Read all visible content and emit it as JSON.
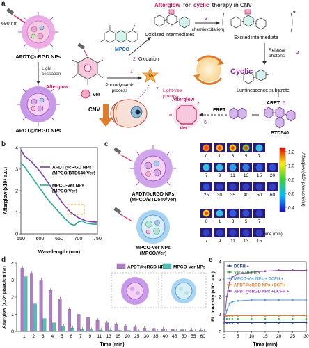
{
  "panel_labels": {
    "a": "a",
    "b": "b",
    "c": "c",
    "d": "d",
    "e": "e"
  },
  "a": {
    "title_afterglow": "Afterglow",
    "title_for": "for",
    "title_cyclic": "cyclic",
    "title_rest": "therapy in CNV",
    "laser": "690 nm",
    "top_np": "APDT@cRGD NPs",
    "light_cessation": "Light\ncessation",
    "afterglow": "Afterglow",
    "bottom_np": "APDT@cRGD NPs",
    "mpco": "MPCO",
    "oxidized": "Oxidized intermediates",
    "step3": "3",
    "chemiexcitation": "chemiexcitation",
    "excited": "Excited intermediate",
    "step2": "2",
    "oxidation": "Oxidation",
    "step1": "1",
    "photodynamic": "Photodynamic\nprocess",
    "ver": "Ver",
    "singlet_oxygen": "¹O₂",
    "step7": "7",
    "light_free": "Light-free\nprocess",
    "cyclic": "Cyclic",
    "release_photons": "Release\nphotons",
    "step4": "4",
    "luminescence": "Luminescence substrate",
    "cnv": "CNV",
    "afterglow2": "Afterglow",
    "ver2": "Ver",
    "step6": "6",
    "fret": "FRET",
    "aret": "ARET",
    "step5": "5",
    "btd": "BTD540"
  },
  "b": {
    "legend": [
      {
        "name": "APDT@cRGD NPs\n(MPCO/BTD540/Ver)",
        "color": "#7b3fa8"
      },
      {
        "name": "MPCO-Ver NPs\n(MPCO/Ver)",
        "color": "#2aa89a"
      }
    ],
    "xlabel": "Wavelength (nm)",
    "ylabel": "Afterglow (x10⁴ a.u.)",
    "xticks": [
      "550",
      "600",
      "650",
      "700",
      "750"
    ],
    "yticks": [
      "0",
      "1",
      "2",
      "3",
      "4"
    ]
  },
  "c": {
    "np1": "APDT@cRGD NPs\n(MPCO/BTD540/Ver)",
    "np2": "MPCO-Ver NPs\n(MPCO/Ver)",
    "top_row1": [
      "0",
      "1",
      "3",
      "5",
      "7"
    ],
    "top_row2": [
      "7",
      "9",
      "11",
      "13",
      "15",
      "20"
    ],
    "top_row3": [
      "25",
      "30",
      "35",
      "40",
      "50",
      "60"
    ],
    "bottom_row1": [
      "0",
      "1",
      "3",
      "5",
      "7"
    ],
    "bottom_row2": [
      "7",
      "9",
      "11",
      "13",
      "15",
      "Time (min)"
    ],
    "colorbar_ticks": [
      "1.2",
      "1.0",
      "0.8",
      "0.6",
      "0.4"
    ],
    "colorbar_label": "Afterglow (x10⁶ p/sec/cm²/sr)"
  },
  "d": {
    "categories": [
      "1",
      "2",
      "3",
      "4",
      "5",
      "6",
      "7",
      "9",
      "11",
      "13",
      "15",
      "20",
      "25",
      "30",
      "35",
      "40",
      "45",
      "50",
      "55",
      "60"
    ],
    "series": [
      {
        "name": "APDT@cRGD NPs",
        "color": "#b07cc6",
        "values": [
          3.7,
          3.4,
          3.0,
          2.4,
          1.9,
          1.3,
          1.0,
          0.8,
          0.65,
          0.5,
          0.4,
          0.3,
          0.25,
          0.2,
          0.17,
          0.15,
          0.12,
          0.1,
          0.08,
          0.07
        ]
      },
      {
        "name": "MPCO-Ver NPs",
        "color": "#4fc2b6",
        "values": [
          3.2,
          1.6,
          0.75,
          0.5,
          0.3,
          0.2,
          0.12,
          0.1,
          0.08,
          0.07,
          0.06,
          0.05,
          0.04,
          0.04,
          0.03,
          0.03,
          0.03,
          0.02,
          0.02,
          0.02
        ]
      }
    ],
    "xlabel": "Time (min)",
    "ylabel": "Afterglow (x10⁶ p/sec/cm²/sr)",
    "yticks": [
      "0",
      "1",
      "2",
      "3",
      "4"
    ]
  },
  "e": {
    "series": [
      {
        "name": "DCFH +",
        "color": "#1f3a93"
      },
      {
        "name": "Ver + DCFH +",
        "color": "#3c8c3c"
      },
      {
        "name": "MPCO-Ver NPs + DCFH +",
        "color": "#5a9bd5"
      },
      {
        "name": "APDT@cRGD NPs +DCFH",
        "color": "#e07b2a"
      },
      {
        "name": "APDT@cRGD NPs +DCFH +",
        "color": "#8e44ad"
      }
    ],
    "xlabel": "Time (min)",
    "ylabel": "FL. intensity (x10⁴ a.u.)",
    "xticks": [
      "0",
      "5",
      "10",
      "15",
      "20",
      "25",
      "30"
    ],
    "yticks": [
      "0",
      "1",
      "2",
      "3",
      "4"
    ]
  },
  "chart_data": [
    {
      "type": "line",
      "panel": "b",
      "xlabel": "Wavelength (nm)",
      "ylabel": "Afterglow (x10⁴ a.u.)",
      "xlim": [
        550,
        750
      ],
      "ylim": [
        0,
        4
      ],
      "series": [
        {
          "name": "APDT@cRGD NPs (MPCO/BTD540/Ver)",
          "x": [
            550,
            560,
            580,
            600,
            620,
            640,
            660,
            680,
            700,
            720,
            740,
            750
          ],
          "y": [
            3.9,
            3.6,
            3.3,
            2.9,
            2.4,
            1.9,
            1.4,
            1.0,
            0.75,
            0.6,
            0.55,
            0.55
          ]
        },
        {
          "name": "MPCO-Ver NPs (MPCO/Ver)",
          "x": [
            550,
            560,
            580,
            600,
            620,
            640,
            660,
            680,
            690,
            700,
            710,
            720,
            740,
            750
          ],
          "y": [
            3.3,
            3.1,
            2.6,
            2.1,
            1.6,
            1.2,
            0.8,
            0.45,
            0.4,
            0.55,
            0.6,
            0.5,
            0.45,
            0.45
          ]
        }
      ]
    },
    {
      "type": "bar",
      "panel": "d",
      "categories": [
        "1",
        "2",
        "3",
        "4",
        "5",
        "6",
        "7",
        "9",
        "11",
        "13",
        "15",
        "20",
        "25",
        "30",
        "35",
        "40",
        "45",
        "50",
        "55",
        "60"
      ],
      "series": [
        {
          "name": "APDT@cRGD NPs",
          "values": [
            3.7,
            3.4,
            3.0,
            2.4,
            1.9,
            1.3,
            1.0,
            0.8,
            0.65,
            0.5,
            0.4,
            0.3,
            0.25,
            0.2,
            0.17,
            0.15,
            0.12,
            0.1,
            0.08,
            0.07
          ]
        },
        {
          "name": "MPCO-Ver NPs",
          "values": [
            3.2,
            1.6,
            0.75,
            0.5,
            0.3,
            0.2,
            0.12,
            0.1,
            0.08,
            0.07,
            0.06,
            0.05,
            0.04,
            0.04,
            0.03,
            0.03,
            0.03,
            0.02,
            0.02,
            0.02
          ]
        }
      ],
      "xlabel": "Time (min)",
      "ylabel": "Afterglow (x10⁶ p/sec/cm²/sr)",
      "ylim": [
        0,
        4
      ]
    },
    {
      "type": "line",
      "panel": "e",
      "xlabel": "Time (min)",
      "ylabel": "FL. intensity (x10⁴ a.u.)",
      "xlim": [
        0,
        30
      ],
      "ylim": [
        0,
        4
      ],
      "series": [
        {
          "name": "DCFH +",
          "x": [
            0,
            1,
            2,
            3,
            5,
            10,
            15,
            20,
            25,
            30
          ],
          "y": [
            0.5,
            0.5,
            0.5,
            0.5,
            0.5,
            0.5,
            0.5,
            0.5,
            0.5,
            0.5
          ]
        },
        {
          "name": "Ver + DCFH +",
          "x": [
            0,
            1,
            2,
            3,
            5,
            10,
            15,
            20,
            25,
            30
          ],
          "y": [
            0.7,
            0.7,
            0.7,
            0.7,
            0.7,
            0.7,
            0.7,
            0.7,
            0.7,
            0.7
          ]
        },
        {
          "name": "MPCO-Ver NPs + DCFH +",
          "x": [
            0,
            1,
            2,
            3,
            5,
            10,
            15,
            20,
            25,
            30
          ],
          "y": [
            0.5,
            1.2,
            1.6,
            1.7,
            1.75,
            1.8,
            1.8,
            1.8,
            1.8,
            1.8
          ]
        },
        {
          "name": "APDT@cRGD NPs +DCFH",
          "x": [
            0,
            1,
            2,
            3,
            5,
            10,
            15,
            20,
            25,
            30
          ],
          "y": [
            0.9,
            0.9,
            0.9,
            0.9,
            0.9,
            0.9,
            0.9,
            0.9,
            0.9,
            0.9
          ]
        },
        {
          "name": "APDT@cRGD NPs +DCFH +",
          "x": [
            0,
            1,
            2,
            3,
            5,
            10,
            15,
            20,
            25,
            30
          ],
          "y": [
            0.5,
            2.0,
            2.8,
            3.1,
            3.3,
            3.4,
            3.45,
            3.5,
            3.5,
            3.5
          ]
        }
      ]
    }
  ]
}
